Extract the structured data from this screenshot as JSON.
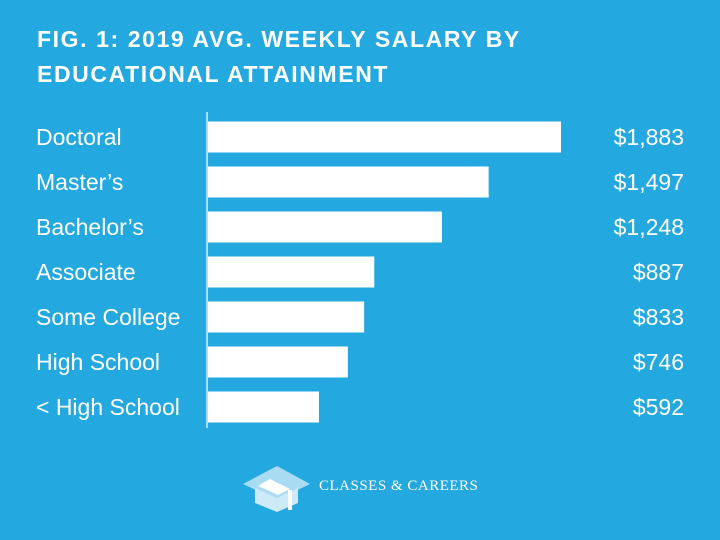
{
  "chart_data": {
    "type": "bar",
    "orientation": "horizontal",
    "title": "FIG. 1: 2019 AVG. WEEKLY SALARY BY EDUCATIONAL ATTAINMENT",
    "categories": [
      "Doctoral",
      "Master’s",
      "Bachelor’s",
      "Associate",
      "Some College",
      "High School",
      "< High School"
    ],
    "values": [
      1883,
      1497,
      1248,
      887,
      833,
      746,
      592
    ],
    "value_labels": [
      "$1,883",
      "$1,497",
      "$1,248",
      "$887",
      "$833",
      "$746",
      "$592"
    ],
    "xlim": [
      0,
      1883
    ],
    "grid": false,
    "colors": {
      "background": "#23a8df",
      "bar": "#ffffff",
      "axis": "#a9dcf3"
    }
  },
  "footer": {
    "brand": "CLASSES & CAREERS",
    "logo_icon": "graduation-cap-icon"
  }
}
